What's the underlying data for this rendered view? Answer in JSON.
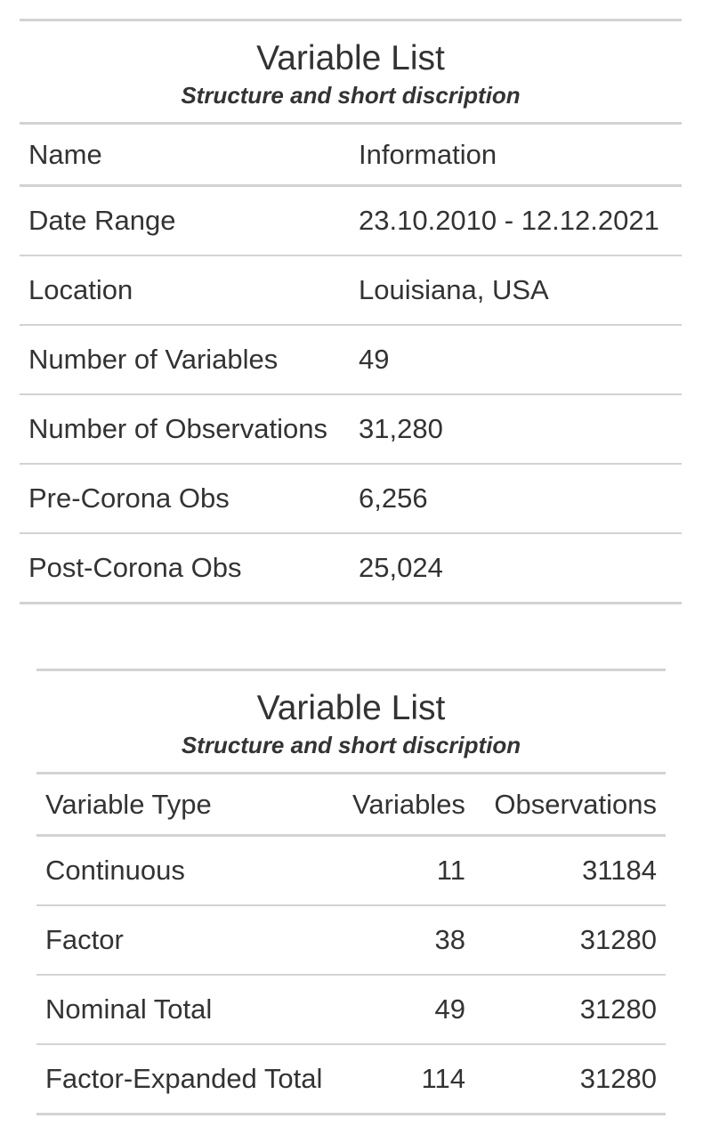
{
  "table1": {
    "title": "Variable List",
    "subtitle": "Structure and short discription",
    "columns": [
      "Name",
      "Information"
    ],
    "rows": [
      [
        "Date Range",
        "23.10.2010 - 12.12.2021"
      ],
      [
        "Location",
        "Louisiana, USA"
      ],
      [
        "Number of Variables",
        "49"
      ],
      [
        "Number of Observations",
        "31,280"
      ],
      [
        "Pre-Corona Obs",
        "6,256"
      ],
      [
        "Post-Corona Obs",
        "25,024"
      ]
    ]
  },
  "table2": {
    "title": "Variable List",
    "subtitle": "Structure and short discription",
    "columns": [
      "Variable Type",
      "Variables",
      "Observations"
    ],
    "rows": [
      [
        "Continuous",
        "11",
        "31184"
      ],
      [
        "Factor",
        "38",
        "31280"
      ],
      [
        "Nominal Total",
        "49",
        "31280"
      ],
      [
        "Factor-Expanded Total",
        "114",
        "31280"
      ]
    ]
  }
}
